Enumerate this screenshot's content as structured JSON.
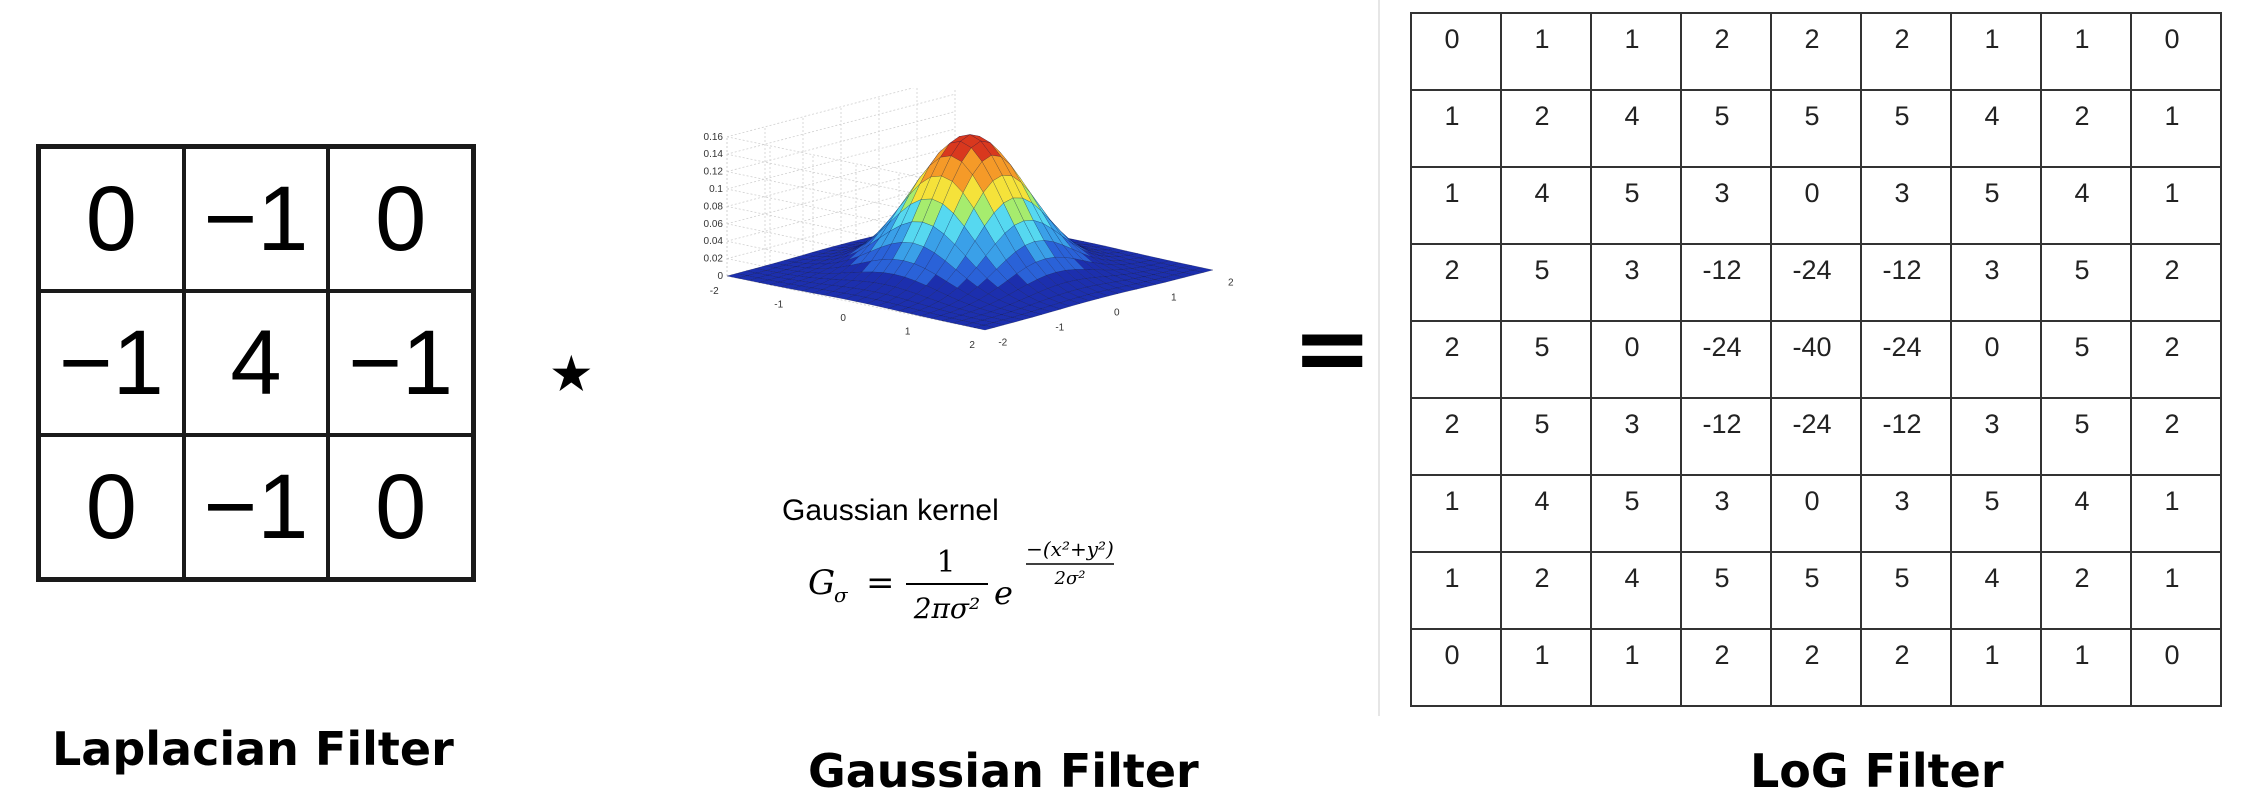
{
  "laplacian": {
    "title": "Laplacian Filter",
    "cells": [
      "0",
      "−1",
      "0",
      "−1",
      "4",
      "−1",
      "0",
      "−1",
      "0"
    ]
  },
  "operators": {
    "convolve": "⋆",
    "equals": "="
  },
  "gaussian": {
    "title": "Gaussian Filter",
    "caption": "Gaussian kernel",
    "formula": {
      "lhs": "G",
      "lhs_sub": "σ",
      "equals": "=",
      "numerator": "1",
      "denominator": "2πσ²",
      "base": "e",
      "exponent_numerator": "−(x²+y²)",
      "exponent_denominator": "2σ²"
    },
    "z_ticks": [
      "0.16",
      "0.14",
      "0.12",
      "0.1",
      "0.08",
      "0.06",
      "0.04",
      "0.02",
      "0"
    ],
    "left_axis_ticks": [
      "2",
      "1",
      "0",
      "-1",
      "-2"
    ],
    "right_axis_ticks": [
      "-2",
      "-1",
      "0",
      "1",
      "2"
    ],
    "surface_colormap": [
      "#1c2fae",
      "#2a62d8",
      "#3aa0e8",
      "#56d8f0",
      "#a6ec6e",
      "#f5e23a",
      "#f59a28",
      "#d9381e"
    ]
  },
  "log": {
    "title": "LoG Filter",
    "rows": [
      [
        "0",
        "1",
        "1",
        "2",
        "2",
        "2",
        "1",
        "1",
        "0"
      ],
      [
        "1",
        "2",
        "4",
        "5",
        "5",
        "5",
        "4",
        "2",
        "1"
      ],
      [
        "1",
        "4",
        "5",
        "3",
        "0",
        "3",
        "5",
        "4",
        "1"
      ],
      [
        "2",
        "5",
        "3",
        "-12",
        "-24",
        "-12",
        "3",
        "5",
        "2"
      ],
      [
        "2",
        "5",
        "0",
        "-24",
        "-40",
        "-24",
        "0",
        "5",
        "2"
      ],
      [
        "2",
        "5",
        "3",
        "-12",
        "-24",
        "-12",
        "3",
        "5",
        "2"
      ],
      [
        "1",
        "4",
        "5",
        "3",
        "0",
        "3",
        "5",
        "4",
        "1"
      ],
      [
        "1",
        "2",
        "4",
        "5",
        "5",
        "5",
        "4",
        "2",
        "1"
      ],
      [
        "0",
        "1",
        "1",
        "2",
        "2",
        "2",
        "1",
        "1",
        "0"
      ]
    ]
  }
}
